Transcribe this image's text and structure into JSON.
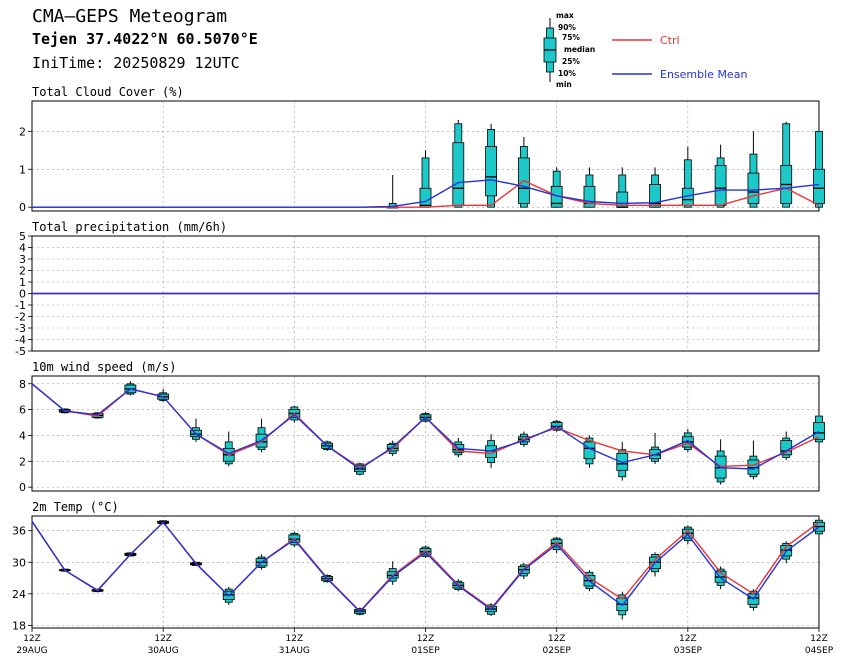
{
  "header": {
    "title": "CMA—GEPS Meteogram",
    "location": "Tejen 37.4022°N 60.5070°E",
    "init_time": "IniTime: 20250829 12UTC"
  },
  "legend": {
    "ctrl_label": "Ctrl",
    "mean_label": "Ensemble Mean",
    "box_labels": [
      "max",
      "90%",
      "75%",
      "median",
      "25%",
      "10%",
      "min"
    ]
  },
  "colors": {
    "ctrl": "#ee3333",
    "mean": "#2233dd",
    "box_fill": "#1cc8c8",
    "grid": "#9a9a9a"
  },
  "chart_data": [
    {
      "type": "box",
      "title": "Total Cloud Cover (%)",
      "ylim": [
        -0.1,
        2.8
      ],
      "yticks": [
        0,
        1,
        2
      ],
      "x_ticks": [
        {
          "i": 0,
          "hour": "12Z",
          "date": "29AUG"
        },
        {
          "i": 4,
          "hour": "12Z",
          "date": "30AUG"
        },
        {
          "i": 8,
          "hour": "12Z",
          "date": "31AUG"
        },
        {
          "i": 12,
          "hour": "12Z",
          "date": "01SEP"
        },
        {
          "i": 16,
          "hour": "12Z",
          "date": "02SEP"
        },
        {
          "i": 20,
          "hour": "12Z",
          "date": "03SEP"
        },
        {
          "i": 24,
          "hour": "12Z",
          "date": "04SEP"
        }
      ],
      "ctrl": [
        0,
        0,
        0,
        0,
        0,
        0,
        0,
        0,
        0,
        0,
        0,
        0,
        0,
        0.05,
        0.05,
        0.7,
        0.3,
        0.1,
        0.05,
        0.05,
        0.05,
        0.05,
        0.3,
        0.5,
        0.05
      ],
      "mean": [
        0,
        0,
        0,
        0,
        0,
        0,
        0,
        0,
        0,
        0,
        0,
        0.02,
        0.15,
        0.65,
        0.72,
        0.55,
        0.3,
        0.15,
        0.1,
        0.12,
        0.3,
        0.45,
        0.45,
        0.5,
        0.6
      ],
      "boxes": [
        null,
        null,
        null,
        null,
        null,
        null,
        null,
        null,
        null,
        null,
        null,
        [
          0,
          0,
          0,
          0,
          0,
          0.1,
          0.85
        ],
        [
          0,
          0,
          0,
          0.05,
          0.5,
          1.3,
          1.5
        ],
        [
          0,
          0,
          0.05,
          0.5,
          1.7,
          2.2,
          2.3
        ],
        [
          0,
          0,
          0.3,
          0.8,
          1.6,
          2.05,
          2.2
        ],
        [
          0,
          0,
          0.1,
          0.5,
          1.3,
          1.6,
          1.85
        ],
        [
          0,
          0,
          0,
          0.1,
          0.55,
          0.95,
          1.05
        ],
        [
          0,
          0,
          0,
          0.1,
          0.55,
          0.85,
          1.05
        ],
        [
          0,
          0,
          0,
          0,
          0.4,
          0.85,
          1.05
        ],
        [
          0,
          0,
          0,
          0.1,
          0.6,
          0.85,
          1.05
        ],
        [
          0,
          0,
          0.05,
          0.2,
          0.5,
          1.25,
          1.6
        ],
        [
          0,
          0,
          0.05,
          0.5,
          1.1,
          1.3,
          1.65
        ],
        [
          0,
          0,
          0.1,
          0.4,
          0.9,
          1.4,
          2
        ],
        [
          0,
          0,
          0.1,
          0.6,
          1.1,
          2.2,
          2.25
        ],
        [
          0,
          0,
          0.1,
          0.5,
          1.0,
          2.0,
          2.45
        ]
      ]
    },
    {
      "type": "line",
      "title": "Total precipitation (mm/6h)",
      "ylim": [
        -5,
        5
      ],
      "yticks": [
        -5,
        -4,
        -3,
        -2,
        -1,
        0,
        1,
        2,
        3,
        4,
        5
      ],
      "ctrl": [
        0,
        0,
        0,
        0,
        0,
        0,
        0,
        0,
        0,
        0,
        0,
        0,
        0,
        0,
        0,
        0,
        0,
        0,
        0,
        0,
        0,
        0,
        0,
        0,
        0
      ],
      "mean": [
        0,
        0,
        0,
        0,
        0,
        0,
        0,
        0,
        0,
        0,
        0,
        0,
        0,
        0,
        0,
        0,
        0,
        0,
        0,
        0,
        0,
        0,
        0,
        0,
        0
      ],
      "boxes": []
    },
    {
      "type": "box",
      "title": "10m wind speed (m/s)",
      "ylim": [
        -0.3,
        8.6
      ],
      "yticks": [
        0,
        2,
        4,
        6,
        8
      ],
      "ctrl": [
        8.0,
        5.9,
        5.5,
        7.6,
        7.0,
        4.1,
        2.5,
        3.5,
        5.7,
        3.2,
        1.5,
        3.0,
        5.4,
        2.8,
        2.6,
        3.7,
        4.6,
        3.6,
        2.8,
        2.5,
        3.4,
        1.6,
        1.7,
        2.7,
        3.9
      ],
      "mean": [
        8.0,
        5.9,
        5.6,
        7.6,
        7.0,
        4.1,
        2.6,
        3.6,
        5.6,
        3.2,
        1.4,
        3.1,
        5.4,
        3.0,
        2.8,
        3.6,
        4.7,
        3.0,
        1.9,
        2.5,
        3.6,
        1.5,
        1.4,
        2.8,
        4.3
      ],
      "boxes": [
        null,
        [
          5.7,
          5.75,
          5.8,
          5.9,
          6.0,
          6.05,
          6.1
        ],
        [
          5.3,
          5.35,
          5.4,
          5.55,
          5.7,
          5.75,
          5.8
        ],
        [
          7.1,
          7.2,
          7.3,
          7.6,
          7.9,
          8.0,
          8.2
        ],
        [
          6.6,
          6.7,
          6.8,
          7.0,
          7.2,
          7.3,
          7.6
        ],
        [
          3.5,
          3.7,
          3.9,
          4.1,
          4.4,
          4.6,
          5.3
        ],
        [
          1.6,
          1.8,
          2.0,
          2.5,
          3.0,
          3.5,
          4.3
        ],
        [
          2.7,
          2.9,
          3.1,
          3.5,
          4.1,
          4.6,
          5.3
        ],
        [
          5.0,
          5.2,
          5.4,
          5.7,
          6.0,
          6.2,
          6.3
        ],
        [
          2.8,
          2.9,
          3.0,
          3.2,
          3.4,
          3.5,
          3.6
        ],
        [
          0.9,
          1.0,
          1.2,
          1.4,
          1.7,
          1.8,
          1.9
        ],
        [
          2.4,
          2.6,
          2.8,
          3.0,
          3.3,
          3.4,
          3.6
        ],
        [
          5.0,
          5.1,
          5.2,
          5.4,
          5.6,
          5.7,
          5.8
        ],
        [
          2.3,
          2.5,
          2.7,
          2.9,
          3.3,
          3.5,
          3.8
        ],
        [
          1.5,
          1.9,
          2.3,
          2.8,
          3.2,
          3.6,
          4.1
        ],
        [
          3.1,
          3.3,
          3.5,
          3.7,
          3.9,
          4.1,
          4.3
        ],
        [
          4.3,
          4.4,
          4.5,
          4.7,
          5.0,
          5.1,
          5.2
        ],
        [
          1.5,
          1.8,
          2.2,
          3.0,
          3.5,
          3.8,
          4.0
        ],
        [
          0.5,
          0.8,
          1.3,
          1.8,
          2.6,
          2.9,
          3.5
        ],
        [
          1.8,
          2.0,
          2.2,
          2.5,
          2.9,
          3.1,
          4.2
        ],
        [
          2.7,
          2.9,
          3.1,
          3.5,
          3.9,
          4.2,
          4.5
        ],
        [
          0.2,
          0.4,
          0.7,
          1.5,
          2.4,
          2.8,
          3.7
        ],
        [
          0.6,
          0.8,
          1.0,
          1.5,
          2.1,
          2.4,
          3.6
        ],
        [
          2.1,
          2.3,
          2.5,
          2.8,
          3.6,
          3.8,
          4.3
        ],
        [
          3.3,
          3.5,
          3.7,
          4.2,
          5.0,
          5.5,
          5.9
        ]
      ]
    },
    {
      "type": "box",
      "title": "2m Temp (°C)",
      "ylim": [
        17.5,
        38.8
      ],
      "yticks": [
        18,
        24,
        30,
        36
      ],
      "ctrl": [
        37.8,
        28.5,
        24.7,
        31.5,
        37.6,
        29.8,
        23.6,
        30.0,
        34.5,
        27.0,
        20.7,
        27.5,
        32.2,
        25.7,
        21.2,
        28.8,
        33.8,
        27.0,
        23.0,
        30.5,
        36.0,
        28.0,
        24.0,
        33.0,
        37.6
      ],
      "mean": [
        37.8,
        28.5,
        24.6,
        31.5,
        37.6,
        29.7,
        23.6,
        30.0,
        34.3,
        26.9,
        20.6,
        27.3,
        31.9,
        25.5,
        21.0,
        28.6,
        33.4,
        26.4,
        21.8,
        29.9,
        35.3,
        27.0,
        23.0,
        32.1,
        36.7
      ],
      "boxes": [
        null,
        [
          28.2,
          28.3,
          28.4,
          28.5,
          28.6,
          28.7,
          28.8
        ],
        [
          24.3,
          24.4,
          24.5,
          24.6,
          24.8,
          24.9,
          25.0
        ],
        [
          31.1,
          31.2,
          31.3,
          31.5,
          31.7,
          31.8,
          31.9
        ],
        [
          37.2,
          37.3,
          37.4,
          37.6,
          37.8,
          37.9,
          38.0
        ],
        [
          29.3,
          29.4,
          29.5,
          29.7,
          29.9,
          30.0,
          30.1
        ],
        [
          21.9,
          22.4,
          22.9,
          23.8,
          24.5,
          24.9,
          25.3
        ],
        [
          28.6,
          29.0,
          29.3,
          30.0,
          30.7,
          31.0,
          31.5
        ],
        [
          32.9,
          33.3,
          33.8,
          34.4,
          35.2,
          35.5,
          35.8
        ],
        [
          26.1,
          26.3,
          26.5,
          26.9,
          27.3,
          27.5,
          27.7
        ],
        [
          19.9,
          20.1,
          20.3,
          20.7,
          21.0,
          21.2,
          21.4
        ],
        [
          25.7,
          26.4,
          27.0,
          27.5,
          28.2,
          28.8,
          30.2
        ],
        [
          30.8,
          31.1,
          31.4,
          32.0,
          32.6,
          32.9,
          33.2
        ],
        [
          24.5,
          24.8,
          25.1,
          25.6,
          26.1,
          26.4,
          26.8
        ],
        [
          19.8,
          20.1,
          20.6,
          21.1,
          21.6,
          21.9,
          22.2
        ],
        [
          26.8,
          27.4,
          27.9,
          28.6,
          29.2,
          29.5,
          29.9
        ],
        [
          31.7,
          32.4,
          32.9,
          33.6,
          34.3,
          34.6,
          34.8
        ],
        [
          24.5,
          25.0,
          25.5,
          26.5,
          27.5,
          28.1,
          28.5
        ],
        [
          19.1,
          20.0,
          20.8,
          22.0,
          23.2,
          23.8,
          24.4
        ],
        [
          27.3,
          28.2,
          28.8,
          30.0,
          31.0,
          31.5,
          31.9
        ],
        [
          33.4,
          34.1,
          34.6,
          35.5,
          36.3,
          36.7,
          37.0
        ],
        [
          24.9,
          25.6,
          26.2,
          27.2,
          28.3,
          28.7,
          29.2
        ],
        [
          20.8,
          21.4,
          22.0,
          23.2,
          24.0,
          24.5,
          24.9
        ],
        [
          29.8,
          30.6,
          31.2,
          32.3,
          33.2,
          33.6,
          34.0
        ],
        [
          34.8,
          35.4,
          35.9,
          36.8,
          37.6,
          38.0,
          38.4
        ]
      ]
    }
  ]
}
